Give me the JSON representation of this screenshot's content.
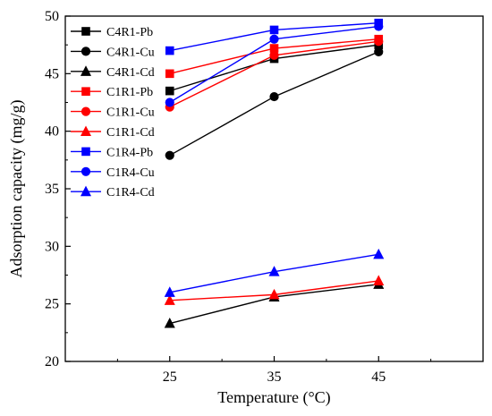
{
  "chart_data": {
    "type": "line",
    "xlabel": "Temperature (°C)",
    "ylabel": "Adsorption capacity (mg/g)",
    "x": [
      25,
      35,
      45
    ],
    "x_ticks": [
      "25",
      "35",
      "45"
    ],
    "xlim": [
      15,
      55
    ],
    "ylim": [
      20,
      50
    ],
    "y_ticks": [
      20,
      25,
      30,
      35,
      40,
      45,
      50
    ],
    "grid": false,
    "legend_position": "top-left",
    "series": [
      {
        "name": "C4R1-Pb",
        "color": "#000000",
        "marker": "square",
        "values": [
          43.5,
          46.3,
          47.5
        ]
      },
      {
        "name": "C4R1-Cu",
        "color": "#000000",
        "marker": "circle",
        "values": [
          37.9,
          43.0,
          46.9
        ]
      },
      {
        "name": "C4R1-Cd",
        "color": "#000000",
        "marker": "triangle",
        "values": [
          23.3,
          25.6,
          26.7
        ]
      },
      {
        "name": "C1R1-Pb",
        "color": "#ff0000",
        "marker": "square",
        "values": [
          45.0,
          47.2,
          48.0
        ]
      },
      {
        "name": "C1R1-Cu",
        "color": "#ff0000",
        "marker": "circle",
        "values": [
          42.1,
          46.6,
          47.8
        ]
      },
      {
        "name": "C1R1-Cd",
        "color": "#ff0000",
        "marker": "triangle",
        "values": [
          25.3,
          25.8,
          27.0
        ]
      },
      {
        "name": "C1R4-Pb",
        "color": "#0000ff",
        "marker": "square",
        "values": [
          47.0,
          48.8,
          49.4
        ]
      },
      {
        "name": "C1R4-Cu",
        "color": "#0000ff",
        "marker": "circle",
        "values": [
          42.5,
          48.0,
          49.1
        ]
      },
      {
        "name": "C1R4-Cd",
        "color": "#0000ff",
        "marker": "triangle",
        "values": [
          26.0,
          27.8,
          29.3
        ]
      }
    ]
  }
}
